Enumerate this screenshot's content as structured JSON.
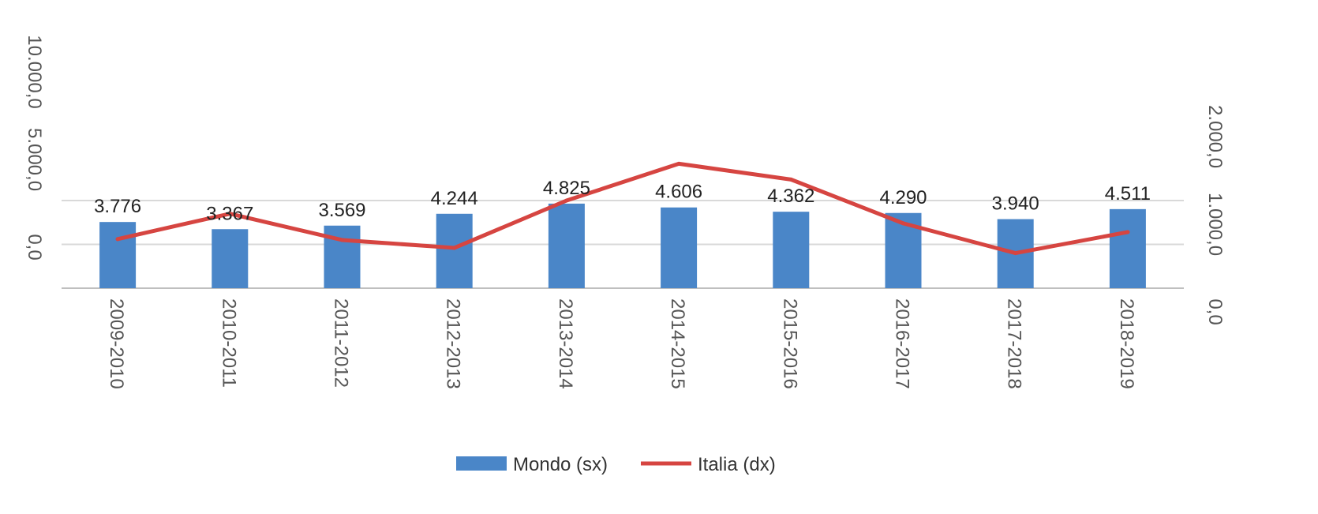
{
  "chart_data": {
    "type": "bar",
    "categories": [
      "2009-2010",
      "2010-2011",
      "2011-2012",
      "2012-2013",
      "2013-2014",
      "2014-2015",
      "2015-2016",
      "2016-2017",
      "2017-2018",
      "2018-2019"
    ],
    "series": [
      {
        "name": "Mondo (sx)",
        "type": "bar",
        "axis": "left",
        "color": "#4a86c8",
        "values": [
          3776,
          3367,
          3569,
          4244,
          4825,
          4606,
          4362,
          4290,
          3940,
          4511
        ],
        "data_labels": [
          "3.776",
          "3.367",
          "3.569",
          "4.244",
          "4.825",
          "4.606",
          "4.362",
          "4.290",
          "3.940",
          "4.511"
        ]
      },
      {
        "name": "Italia (dx)",
        "type": "line",
        "axis": "right",
        "color": "#d64541",
        "values": [
          560,
          850,
          550,
          460,
          1000,
          1420,
          1240,
          740,
          400,
          640
        ]
      }
    ],
    "y_left": {
      "range": [
        0,
        10000
      ],
      "ticks": [
        0,
        5000,
        10000
      ],
      "tick_labels": [
        "0,0",
        "5.000,0",
        "10.000,0"
      ]
    },
    "y_right": {
      "range": [
        0,
        2000
      ],
      "ticks": [
        0,
        1000,
        2000
      ],
      "tick_labels": [
        "0,0",
        "1.000,0",
        "2.000,0"
      ]
    },
    "grid": true,
    "legend": "bottom-center"
  }
}
